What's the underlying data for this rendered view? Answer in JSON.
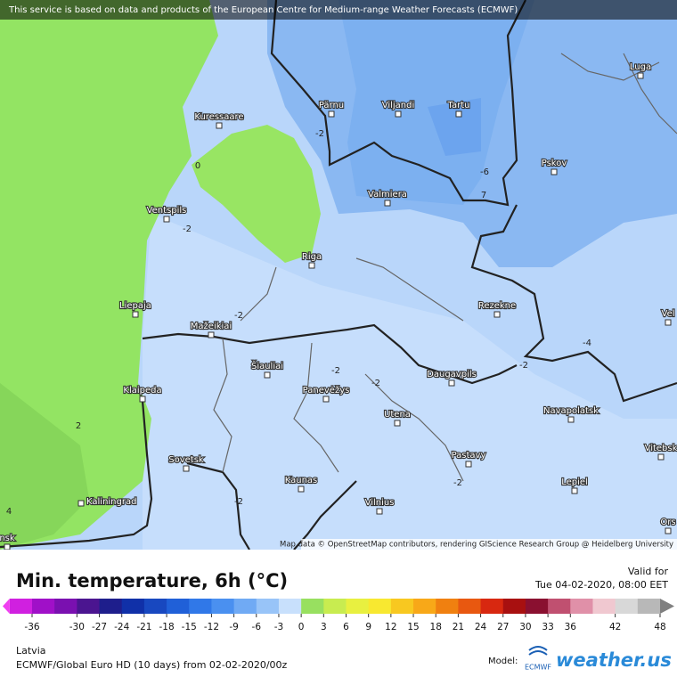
{
  "header_notice": "This service is based on data and products of the European Centre for Medium-range Weather Forecasts (ECMWF)",
  "map": {
    "cities": [
      "Luga",
      "Pärnu",
      "Viljandi",
      "Tartu",
      "Kuressaare",
      "Pskov",
      "Valmiera",
      "Ventspils",
      "Riga",
      "Rezekne",
      "Liepaja",
      "Mažeikiai",
      "Šiauliai",
      "Daugavpils",
      "Klaipeda",
      "Panevėžys",
      "Navapolatsk",
      "Utena",
      "Vitebsk",
      "Sovetsk",
      "Pastavy",
      "Kaunas",
      "Lepiel",
      "Kaliningrad",
      "Vilnius",
      "Vel",
      "Ors",
      "nsk"
    ],
    "contour_labels": [
      "-2",
      "0",
      "-6",
      "7",
      "-2",
      "-2",
      "-4",
      "-2",
      "-2",
      "-2",
      "2",
      "-2",
      "-2",
      "4"
    ],
    "attribution": "Map data © OpenStreetMap contributors, rendering GIScience Research Group @ Heidelberg University"
  },
  "legend": {
    "title": "Min. temperature, 6h (°C)",
    "valid_label": "Valid for",
    "valid_time": "Tue 04-02-2020, 08:00 EET",
    "ticks": [
      -36,
      -30,
      -27,
      -24,
      -21,
      -18,
      -15,
      -12,
      -9,
      -6,
      -3,
      0,
      3,
      6,
      9,
      12,
      15,
      18,
      21,
      24,
      27,
      30,
      33,
      36,
      42,
      48
    ]
  },
  "footer": {
    "region": "Latvia",
    "model_run": "ECMWF/Global Euro HD (10 days)  from  02-02-2020/00z",
    "model_label": "Model:",
    "ecmwf_logo": "ECMWF",
    "brand": "weather.us"
  }
}
